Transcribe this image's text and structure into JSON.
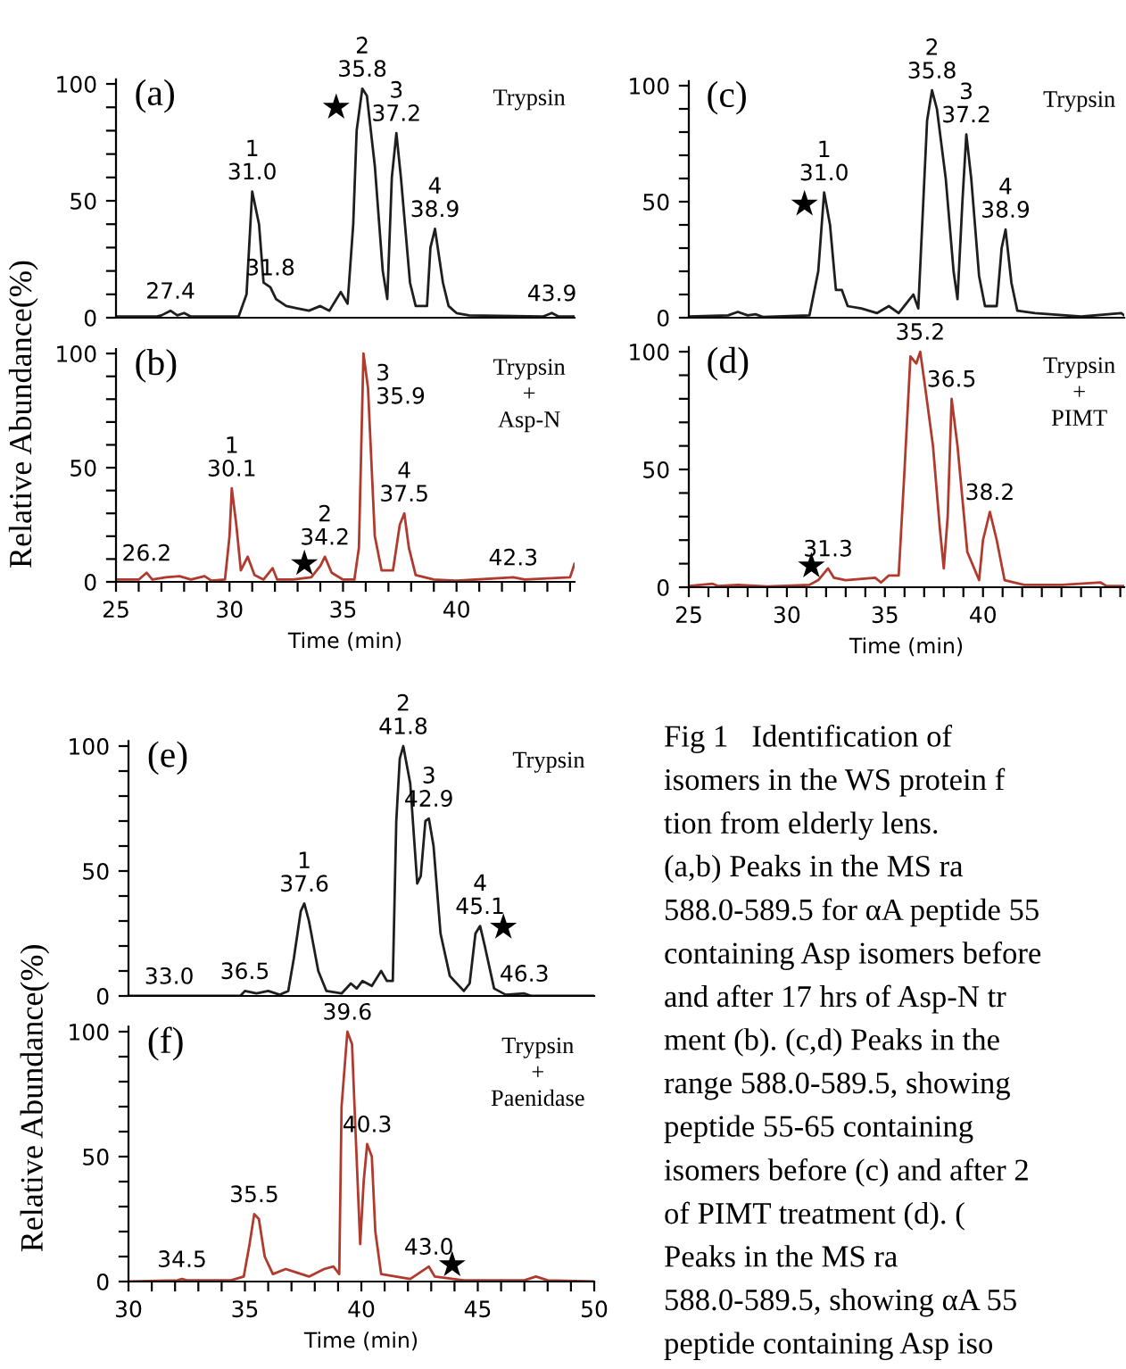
{
  "chart_data": [
    {
      "type": "line",
      "title": "(a)",
      "xlim": [
        25,
        45.2
      ],
      "ylim": [
        0,
        102
      ],
      "tick_labels": "y",
      "yticks": [
        0,
        {
          "value": 10,
          "label": null
        },
        {
          "value": 20,
          "label": null
        },
        {
          "value": 30,
          "label": null
        },
        {
          "value": 40,
          "label": null
        },
        50,
        {
          "value": 60,
          "label": null
        },
        {
          "value": 70,
          "label": null
        },
        {
          "value": 80,
          "label": null
        },
        {
          "value": 90,
          "label": null
        },
        100
      ],
      "series": [
        {
          "type": "line",
          "color": "#1e1e1e",
          "x": [
            25,
            26.8,
            27.0,
            27.4,
            27.7,
            28.0,
            28.3,
            30.4,
            30.75,
            31.0,
            31.3,
            31.5,
            31.8,
            32.05,
            32.5,
            33.0,
            33.5,
            34.0,
            34.4,
            34.9,
            35.2,
            35.45,
            35.6,
            35.85,
            36.05,
            36.4,
            36.75,
            36.95,
            37.15,
            37.35,
            37.55,
            37.95,
            38.2,
            38.7,
            38.85,
            39.05,
            39.4,
            39.65,
            40.0,
            40.55,
            43.8,
            44.2,
            44.5,
            45.2
          ],
          "values": [
            0.5,
            0.5,
            1,
            3,
            1,
            2,
            0.5,
            0.5,
            10,
            54,
            40,
            15,
            13,
            8,
            5,
            4,
            3,
            5,
            3,
            11,
            6,
            40,
            80,
            98,
            95,
            65,
            20,
            8,
            60,
            79,
            60,
            15,
            5,
            5,
            30,
            38,
            15,
            5,
            2,
            1,
            0.5,
            2,
            0.5,
            0.5
          ]
        },
        {
          "type": "scatter",
          "marker": "star",
          "color": "#000000",
          "x": [
            34.7
          ],
          "values": [
            90
          ]
        }
      ],
      "annotations": [
        "Trypsin",
        {
          "text": "1\n31.0",
          "x": 31.0,
          "y": 54
        },
        {
          "text": "2\n35.8",
          "x": 35.85,
          "y": 98
        },
        {
          "text": "3\n37.2",
          "x": 37.35,
          "y": 79
        },
        {
          "text": "4\n38.9",
          "x": 39.05,
          "y": 38
        },
        {
          "text": "31.8",
          "x": 31.8,
          "y": 13
        },
        {
          "text": "27.4",
          "x": 27.4,
          "y": 3
        },
        {
          "text": "43.9",
          "x": 44.2,
          "y": 2
        }
      ]
    },
    {
      "type": "line",
      "title": "(b)",
      "xlabel": "Time (min)",
      "ylabel": "Relative Abundance(%)",
      "xlim": [
        25,
        45.2
      ],
      "ylim": [
        0,
        102
      ],
      "xticks": [
        25,
        {
          "value": 26,
          "label": null
        },
        {
          "value": 27,
          "label": null
        },
        {
          "value": 28,
          "label": null
        },
        {
          "value": 29,
          "label": null
        },
        30,
        {
          "value": 31,
          "label": null
        },
        {
          "value": 32,
          "label": null
        },
        {
          "value": 33,
          "label": null
        },
        {
          "value": 34,
          "label": null
        },
        35,
        {
          "value": 36,
          "label": null
        },
        {
          "value": 37,
          "label": null
        },
        {
          "value": 38,
          "label": null
        },
        {
          "value": 39,
          "label": null
        },
        40,
        {
          "value": 41,
          "label": null
        },
        {
          "value": 42,
          "label": null
        },
        {
          "value": 43,
          "label": null
        },
        {
          "value": 44,
          "label": null
        },
        {
          "value": 45,
          "label": null
        }
      ],
      "yticks": [
        0,
        {
          "value": 10,
          "label": null
        },
        {
          "value": 20,
          "label": null
        },
        {
          "value": 30,
          "label": null
        },
        {
          "value": 40,
          "label": null
        },
        50,
        {
          "value": 60,
          "label": null
        },
        {
          "value": 70,
          "label": null
        },
        {
          "value": 80,
          "label": null
        },
        {
          "value": 90,
          "label": null
        },
        100
      ],
      "series": [
        {
          "type": "line",
          "color": "#b03a2e",
          "x": [
            25,
            26.0,
            26.35,
            26.6,
            27.2,
            27.8,
            28.3,
            28.9,
            29.2,
            29.8,
            30.0,
            30.1,
            30.3,
            30.5,
            30.8,
            31.1,
            31.5,
            31.9,
            32.1,
            32.8,
            33.6,
            34.0,
            34.2,
            34.5,
            35.0,
            35.5,
            35.7,
            35.9,
            36.1,
            36.4,
            36.7,
            37.2,
            37.5,
            37.7,
            37.9,
            38.2,
            39.0,
            40.0,
            42.5,
            43.0,
            45.0,
            45.2
          ],
          "values": [
            1,
            1,
            4,
            1,
            2,
            2.5,
            1,
            2.5,
            0.5,
            1,
            20,
            41,
            25,
            5,
            11,
            3,
            1,
            6,
            1,
            1,
            2,
            7,
            11,
            4,
            1,
            1,
            15,
            100,
            85,
            20,
            5,
            5,
            25,
            30,
            15,
            3,
            1,
            0.5,
            2,
            1,
            2,
            8
          ]
        },
        {
          "type": "scatter",
          "marker": "star",
          "color": "#000000",
          "x": [
            33.3
          ],
          "values": [
            8
          ]
        }
      ],
      "annotations": [
        "Trypsin\n+\nAsp-N",
        {
          "text": "1\n30.1",
          "x": 30.1,
          "y": 41
        },
        {
          "text": "2\n34.2",
          "x": 34.2,
          "y": 11
        },
        {
          "text": "3\n35.9",
          "x": 35.9,
          "y": 100
        },
        {
          "text": "4\n37.5",
          "x": 37.7,
          "y": 30
        },
        {
          "text": "26.2",
          "x": 26.35,
          "y": 4
        },
        {
          "text": "42.3",
          "x": 42.5,
          "y": 2
        }
      ]
    },
    {
      "type": "line",
      "title": "(c)",
      "xlim": [
        25,
        47.2
      ],
      "ylim": [
        0,
        102
      ],
      "tick_labels": "y",
      "yticks": [
        0,
        {
          "value": 10,
          "label": null
        },
        {
          "value": 20,
          "label": null
        },
        {
          "value": 30,
          "label": null
        },
        {
          "value": 40,
          "label": null
        },
        50,
        {
          "value": 60,
          "label": null
        },
        {
          "value": 70,
          "label": null
        },
        {
          "value": 80,
          "label": null
        },
        {
          "value": 90,
          "label": null
        },
        100
      ],
      "series": [
        {
          "type": "line",
          "color": "#1e1e1e",
          "x": [
            25,
            27.0,
            27.5,
            28.0,
            28.4,
            28.8,
            31.15,
            31.6,
            31.9,
            32.2,
            32.5,
            32.8,
            33.1,
            33.8,
            34.6,
            35.2,
            35.7,
            36.45,
            36.7,
            36.9,
            37.15,
            37.4,
            37.65,
            38.1,
            38.5,
            38.7,
            38.95,
            39.15,
            39.4,
            39.8,
            40.1,
            40.7,
            40.95,
            41.15,
            41.45,
            41.75,
            42.65,
            45.0,
            47.05,
            47.2
          ],
          "values": [
            0.5,
            1,
            2.5,
            1,
            1.5,
            0.3,
            1,
            20,
            54,
            40,
            12,
            12,
            5,
            4,
            2,
            5,
            2,
            10,
            4,
            40,
            85,
            98,
            90,
            60,
            20,
            8,
            50,
            79,
            60,
            18,
            5,
            5,
            30,
            38,
            15,
            3,
            2,
            0.5,
            2,
            1
          ]
        },
        {
          "type": "scatter",
          "marker": "star",
          "color": "#000000",
          "x": [
            30.9
          ],
          "values": [
            49
          ]
        }
      ],
      "annotations": [
        "Trypsin",
        {
          "text": "1\n31.0",
          "x": 31.9,
          "y": 54
        },
        {
          "text": "2\n35.8",
          "x": 37.4,
          "y": 98
        },
        {
          "text": "3\n37.2",
          "x": 39.15,
          "y": 79
        },
        {
          "text": "4\n38.9",
          "x": 41.15,
          "y": 38
        }
      ]
    },
    {
      "type": "line",
      "title": "(d)",
      "xlabel": "Time (min)",
      "xlim": [
        25,
        47.2
      ],
      "ylim": [
        0,
        102
      ],
      "xticks": [
        25,
        {
          "value": 26,
          "label": null
        },
        {
          "value": 27,
          "label": null
        },
        {
          "value": 28,
          "label": null
        },
        {
          "value": 29,
          "label": null
        },
        30,
        {
          "value": 31,
          "label": null
        },
        {
          "value": 32,
          "label": null
        },
        {
          "value": 33,
          "label": null
        },
        {
          "value": 34,
          "label": null
        },
        35,
        {
          "value": 36,
          "label": null
        },
        {
          "value": 37,
          "label": null
        },
        {
          "value": 38,
          "label": null
        },
        {
          "value": 39,
          "label": null
        },
        40,
        {
          "value": 41,
          "label": null
        },
        {
          "value": 42,
          "label": null
        },
        {
          "value": 43,
          "label": null
        },
        {
          "value": 44,
          "label": null
        },
        {
          "value": 45,
          "label": null
        },
        {
          "value": 46,
          "label": null
        },
        {
          "value": 47,
          "label": null
        }
      ],
      "yticks": [
        0,
        {
          "value": 10,
          "label": null
        },
        {
          "value": 20,
          "label": null
        },
        {
          "value": 30,
          "label": null
        },
        {
          "value": 40,
          "label": null
        },
        50,
        {
          "value": 60,
          "label": null
        },
        {
          "value": 70,
          "label": null
        },
        {
          "value": 80,
          "label": null
        },
        {
          "value": 90,
          "label": null
        },
        100
      ],
      "series": [
        {
          "type": "line",
          "color": "#b03a2e",
          "x": [
            25,
            26.2,
            26.5,
            27.5,
            29.0,
            31.15,
            31.6,
            32.1,
            32.4,
            33.0,
            34.5,
            34.8,
            35.2,
            35.7,
            36.0,
            36.3,
            36.6,
            36.8,
            37.05,
            37.45,
            37.8,
            38.0,
            38.2,
            38.4,
            38.7,
            39.2,
            39.8,
            40.0,
            40.35,
            40.7,
            41.1,
            42.1,
            44.0,
            46.0,
            46.3,
            47.2
          ],
          "values": [
            0.5,
            1.5,
            0.5,
            1,
            0.3,
            1,
            3,
            8,
            4,
            3,
            4,
            2,
            5,
            5,
            50,
            98,
            95,
            100,
            85,
            60,
            25,
            8,
            30,
            80,
            60,
            15,
            3,
            20,
            32,
            20,
            3,
            1,
            1,
            2,
            0.5,
            0.5
          ]
        },
        {
          "type": "scatter",
          "marker": "star",
          "color": "#000000",
          "x": [
            31.25
          ],
          "values": [
            9
          ]
        }
      ],
      "annotations": [
        "Trypsin\n+\nPIMT",
        {
          "text": "35.2",
          "x": 36.8,
          "y": 100
        },
        {
          "text": "36.5",
          "x": 38.4,
          "y": 80
        },
        {
          "text": "38.2",
          "x": 40.35,
          "y": 32
        },
        {
          "text": "31.3",
          "x": 32.1,
          "y": 8
        }
      ]
    },
    {
      "type": "line",
      "title": "(e)",
      "xlim": [
        30,
        50
      ],
      "ylim": [
        0,
        102
      ],
      "tick_labels": "y",
      "yticks": [
        0,
        {
          "value": 10,
          "label": null
        },
        {
          "value": 20,
          "label": null
        },
        {
          "value": 30,
          "label": null
        },
        {
          "value": 40,
          "label": null
        },
        50,
        {
          "value": 60,
          "label": null
        },
        {
          "value": 70,
          "label": null
        },
        {
          "value": 80,
          "label": null
        },
        {
          "value": 90,
          "label": null
        },
        100
      ],
      "series": [
        {
          "type": "line",
          "color": "#1e1e1e",
          "x": [
            30,
            34.8,
            35.0,
            35.5,
            36.0,
            36.5,
            36.86,
            37.1,
            37.4,
            37.55,
            37.75,
            38.15,
            38.5,
            39.15,
            39.55,
            39.8,
            40.05,
            40.45,
            40.85,
            41.1,
            41.35,
            41.5,
            41.65,
            41.8,
            42.1,
            42.4,
            42.55,
            42.75,
            42.9,
            43.1,
            43.4,
            43.8,
            44.4,
            44.65,
            44.9,
            45.1,
            45.3,
            45.7,
            46.2,
            47.0,
            47.3,
            50
          ],
          "values": [
            0,
            0,
            2,
            1,
            2,
            0.5,
            2,
            15,
            34,
            37,
            30,
            10,
            2,
            1,
            5,
            3,
            6,
            4,
            10,
            6,
            6,
            70,
            95,
            100,
            85,
            45,
            48,
            70,
            71,
            60,
            25,
            8,
            2,
            5,
            25,
            28,
            20,
            3,
            0.5,
            1,
            0,
            0
          ]
        },
        {
          "type": "scatter",
          "marker": "star",
          "color": "#000000",
          "x": [
            46.1
          ],
          "values": [
            27.5
          ]
        }
      ],
      "annotations": [
        "Trypsin",
        {
          "text": "1\n37.6",
          "x": 37.55,
          "y": 37
        },
        {
          "text": "2\n41.8",
          "x": 41.8,
          "y": 100
        },
        {
          "text": "3\n42.9",
          "x": 42.9,
          "y": 71
        },
        {
          "text": "4\n45.1",
          "x": 45.1,
          "y": 28
        },
        {
          "text": "33.0",
          "x": 31.75,
          "y": 0
        },
        {
          "text": "36.5",
          "x": 35.0,
          "y": 2
        },
        {
          "text": "46.3",
          "x": 47.0,
          "y": 1
        }
      ]
    },
    {
      "type": "line",
      "title": "(f)",
      "xlabel": "Time (min)",
      "ylabel": "Relative Abundance(%)",
      "xlim": [
        30,
        50
      ],
      "ylim": [
        0,
        102
      ],
      "xticks": [
        30,
        {
          "value": 31,
          "label": null
        },
        {
          "value": 32,
          "label": null
        },
        {
          "value": 33,
          "label": null
        },
        {
          "value": 34,
          "label": null
        },
        35,
        {
          "value": 36,
          "label": null
        },
        {
          "value": 37,
          "label": null
        },
        {
          "value": 38,
          "label": null
        },
        {
          "value": 39,
          "label": null
        },
        40,
        {
          "value": 41,
          "label": null
        },
        {
          "value": 42,
          "label": null
        },
        {
          "value": 43,
          "label": null
        },
        {
          "value": 44,
          "label": null
        },
        45,
        {
          "value": 46,
          "label": null
        },
        {
          "value": 47,
          "label": null
        },
        {
          "value": 48,
          "label": null
        },
        {
          "value": 49,
          "label": null
        },
        50
      ],
      "yticks": [
        0,
        {
          "value": 10,
          "label": null
        },
        {
          "value": 20,
          "label": null
        },
        {
          "value": 30,
          "label": null
        },
        {
          "value": 40,
          "label": null
        },
        50,
        {
          "value": 60,
          "label": null
        },
        {
          "value": 70,
          "label": null
        },
        {
          "value": 80,
          "label": null
        },
        {
          "value": 90,
          "label": null
        },
        100
      ],
      "series": [
        {
          "type": "line",
          "color": "#b03a2e",
          "x": [
            30,
            32.1,
            32.3,
            32.5,
            34.4,
            34.95,
            35.2,
            35.4,
            35.6,
            35.85,
            36.2,
            36.75,
            37.1,
            37.75,
            38.4,
            38.8,
            39.05,
            39.15,
            39.4,
            39.6,
            39.75,
            39.95,
            40.1,
            40.25,
            40.45,
            40.6,
            40.85,
            42.1,
            42.9,
            43.15,
            44.4,
            47.0,
            47.5,
            48.0,
            50
          ],
          "values": [
            0,
            0.5,
            1,
            0.5,
            0.5,
            2,
            15,
            27,
            25,
            10,
            3,
            5,
            4,
            2,
            5,
            6,
            3,
            70,
            100,
            95,
            60,
            15,
            40,
            55,
            50,
            20,
            3,
            1,
            6,
            2,
            0.5,
            0.5,
            2,
            0.5,
            0
          ]
        },
        {
          "type": "scatter",
          "marker": "star",
          "color": "#000000",
          "x": [
            43.9
          ],
          "values": [
            6.7
          ]
        }
      ],
      "annotations": [
        "Trypsin\n+\nPaenidase",
        {
          "text": "39.6",
          "x": 39.4,
          "y": 100
        },
        {
          "text": "40.3",
          "x": 40.25,
          "y": 55
        },
        {
          "text": "35.5",
          "x": 35.4,
          "y": 27
        },
        {
          "text": "34.5",
          "x": 32.3,
          "y": 1
        },
        {
          "text": "43.0",
          "x": 42.9,
          "y": 6
        }
      ]
    },
    {
      "type": "other",
      "annotations": [
        "Fig 1   Identification of",
        "isomers in the WS protein f",
        "tion from elderly lens.",
        "(a,b) Peaks in the MS ra",
        "588.0-589.5 for αA peptide 55",
        "containing Asp isomers before",
        "and after 17 hrs of Asp-N tr",
        "ment (b). (c,d) Peaks in the",
        "range 588.0-589.5, showing",
        "peptide 55-65 containing",
        "isomers before (c) and after 2",
        "of PIMT treatment (d). (",
        "Peaks in the MS ra",
        "588.0-589.5, showing αA 55",
        "peptide containing Asp iso"
      ]
    }
  ]
}
